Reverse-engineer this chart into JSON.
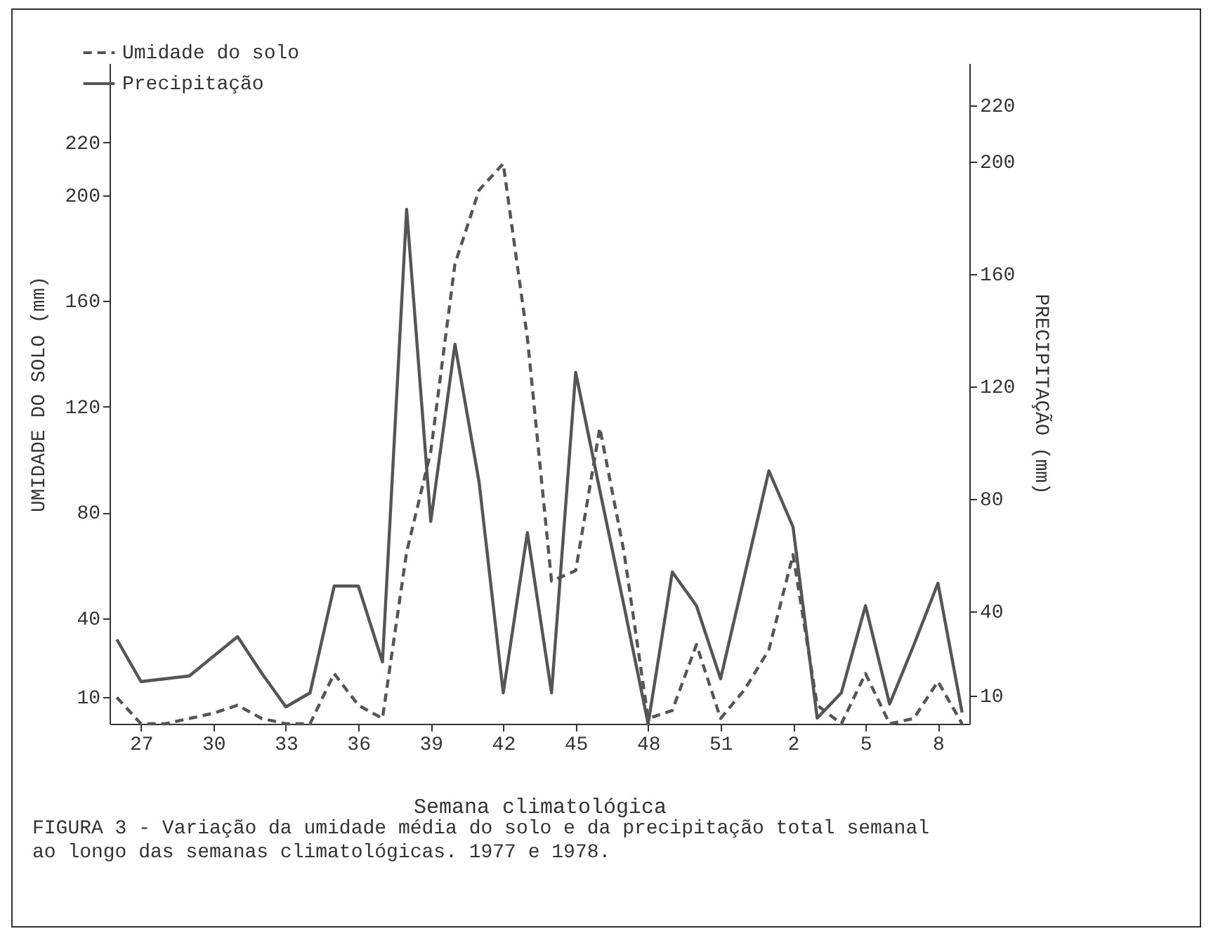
{
  "chart_data": {
    "type": "line",
    "xlabel": "Semana climatológica",
    "ylabel": "UMIDADE DO SOLO (mm)",
    "y2label": "PRECIPITAÇÃO (mm)",
    "annotations": [
      "FIGURA 3 - Variação da umidade média do solo e da precipitação total semanal ao longo das semanas climatológicas. 1977 e 1978."
    ],
    "categories": [
      null,
      "27",
      null,
      null,
      "30",
      null,
      null,
      "33",
      null,
      null,
      "36",
      null,
      null,
      "39",
      null,
      null,
      "42",
      null,
      null,
      "45",
      null,
      null,
      "48",
      null,
      null,
      "51",
      null,
      null,
      "2",
      null,
      null,
      "5",
      null,
      null,
      "8",
      null
    ],
    "series": [
      {
        "name": "Umidade do solo",
        "color": "#555555",
        "line_style": "dashed",
        "values": [
          10,
          0,
          0,
          2,
          4,
          7,
          2,
          0,
          0,
          19,
          7,
          2,
          65,
          103,
          174,
          202,
          212,
          146,
          54,
          58,
          112,
          65,
          2,
          5,
          30,
          2,
          13,
          28,
          64,
          7,
          0,
          19,
          0,
          2,
          16,
          0
        ]
      },
      {
        "name": "Precipitação",
        "color": "#555555",
        "line_style": "solid",
        "axis": "y2",
        "values": [
          30,
          15,
          16,
          17,
          24,
          31,
          18,
          6,
          11,
          49,
          49,
          22,
          183,
          72,
          135,
          86,
          11,
          68,
          11,
          125,
          83,
          42,
          0,
          54,
          42,
          16,
          53,
          90,
          70,
          2,
          11,
          42,
          7,
          28,
          50,
          4
        ]
      }
    ],
    "ylim": [
      0,
      250
    ],
    "yticks": [
      10,
      40,
      80,
      120,
      160,
      200,
      220
    ],
    "y2lim": [
      0,
      235
    ],
    "y2ticks": [
      10,
      40,
      80,
      120,
      160,
      200,
      220
    ],
    "legend": "top left",
    "marker": "none"
  }
}
